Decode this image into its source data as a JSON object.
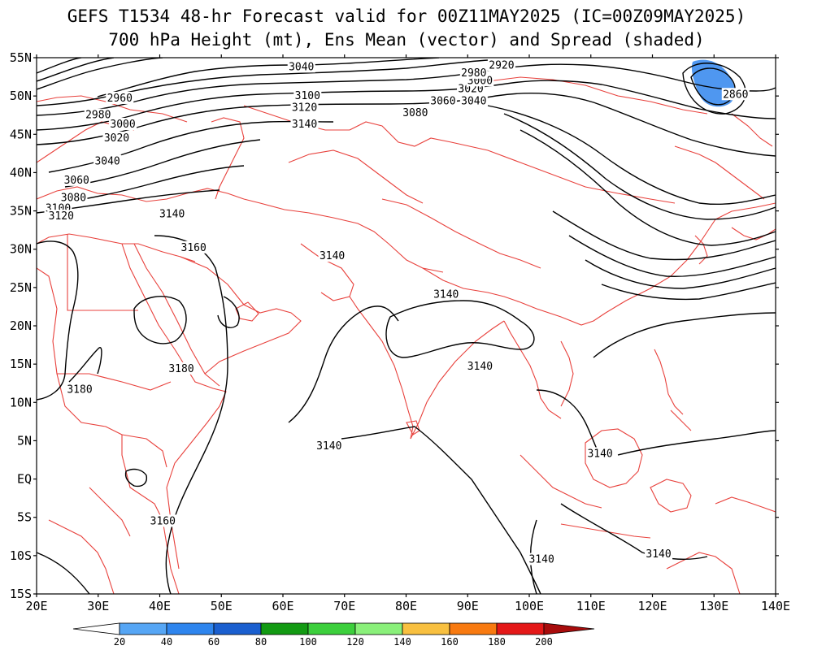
{
  "title": {
    "line1": "GEFS T1534 48-hr Forecast valid for 00Z11MAY2025 (IC=00Z09MAY2025)",
    "line2": "700 hPa Height (mt), Ens Mean (vector) and Spread (shaded)"
  },
  "axes": {
    "lat_labels": [
      "55N",
      "50N",
      "45N",
      "40N",
      "35N",
      "30N",
      "25N",
      "20N",
      "15N",
      "10N",
      "5N",
      "EQ",
      "5S",
      "10S",
      "15S"
    ],
    "lon_labels": [
      "20E",
      "30E",
      "40E",
      "50E",
      "60E",
      "70E",
      "80E",
      "90E",
      "100E",
      "110E",
      "120E",
      "130E",
      "140E"
    ]
  },
  "contour_labels": [
    {
      "text": "2960",
      "lon": 33.5,
      "lat": 49.7
    },
    {
      "text": "2980",
      "lon": 30.0,
      "lat": 47.5
    },
    {
      "text": "3000",
      "lon": 34.0,
      "lat": 46.3
    },
    {
      "text": "3020",
      "lon": 33.0,
      "lat": 44.5
    },
    {
      "text": "3040",
      "lon": 31.5,
      "lat": 41.5
    },
    {
      "text": "3060",
      "lon": 26.5,
      "lat": 39.0
    },
    {
      "text": "3080",
      "lon": 26.0,
      "lat": 36.7
    },
    {
      "text": "3100",
      "lon": 23.5,
      "lat": 35.3
    },
    {
      "text": "3120",
      "lon": 24.0,
      "lat": 34.3
    },
    {
      "text": "3040",
      "lon": 63.0,
      "lat": 53.8
    },
    {
      "text": "3100",
      "lon": 64.0,
      "lat": 50.0
    },
    {
      "text": "3120",
      "lon": 63.5,
      "lat": 48.5
    },
    {
      "text": "3140",
      "lon": 63.5,
      "lat": 46.3
    },
    {
      "text": "3080",
      "lon": 81.5,
      "lat": 47.8
    },
    {
      "text": "3060",
      "lon": 86.0,
      "lat": 49.3
    },
    {
      "text": "3040",
      "lon": 91.0,
      "lat": 49.3
    },
    {
      "text": "3020",
      "lon": 90.5,
      "lat": 50.9
    },
    {
      "text": "3000",
      "lon": 92.0,
      "lat": 52.0
    },
    {
      "text": "2980",
      "lon": 91.0,
      "lat": 53.0
    },
    {
      "text": "2920",
      "lon": 95.5,
      "lat": 54.0
    },
    {
      "text": "2860",
      "lon": 133.5,
      "lat": 50.2
    },
    {
      "text": "3140",
      "lon": 42.0,
      "lat": 34.6
    },
    {
      "text": "3160",
      "lon": 45.5,
      "lat": 30.2
    },
    {
      "text": "3140",
      "lon": 68.0,
      "lat": 29.1
    },
    {
      "text": "3140",
      "lon": 86.5,
      "lat": 24.1
    },
    {
      "text": "3140",
      "lon": 92.0,
      "lat": 14.7
    },
    {
      "text": "3180",
      "lon": 43.5,
      "lat": 14.4
    },
    {
      "text": "3180",
      "lon": 27.0,
      "lat": 11.7
    },
    {
      "text": "3140",
      "lon": 67.5,
      "lat": 4.3
    },
    {
      "text": "3140",
      "lon": 111.5,
      "lat": 3.3
    },
    {
      "text": "3160",
      "lon": 40.5,
      "lat": -5.5
    },
    {
      "text": "3140",
      "lon": 102.0,
      "lat": -10.5
    },
    {
      "text": "3140",
      "lon": 121.0,
      "lat": -9.8
    }
  ],
  "colorbar": {
    "labels": [
      "20",
      "40",
      "60",
      "80",
      "100",
      "120",
      "140",
      "160",
      "180",
      "200"
    ],
    "colors": [
      "#56a6f5",
      "#2e85ee",
      "#1a5fcf",
      "#129a12",
      "#3ccf3c",
      "#8af07a",
      "#f8c040",
      "#f87a10",
      "#e41818",
      "#a80c0c"
    ]
  },
  "colors": {
    "contour": "#000000",
    "coastline": "#e8413c",
    "spread_shading": "#4f97f0"
  }
}
